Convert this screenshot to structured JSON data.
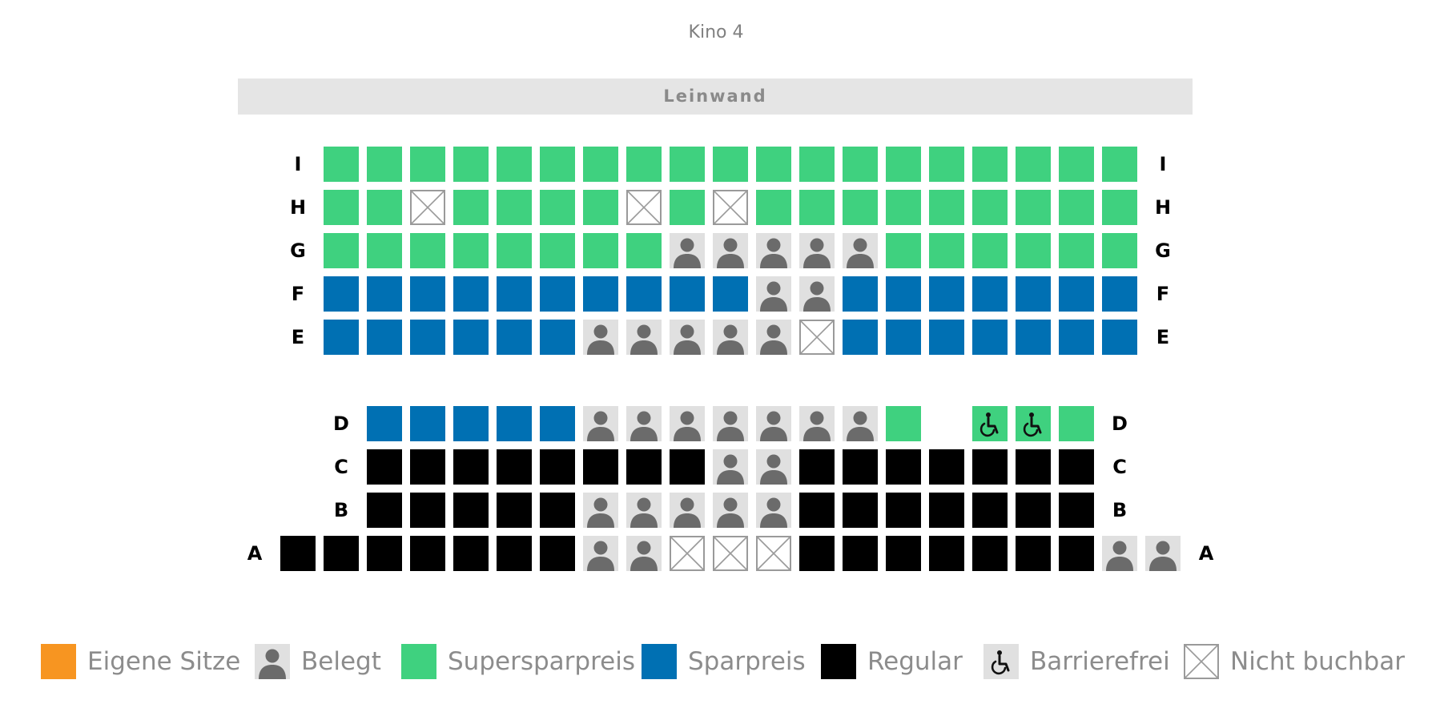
{
  "hall_title": "Kino 4",
  "screen_label": "Leinwand",
  "colors": {
    "eigene": "#f79521",
    "belegt_bg": "#e0e0e0",
    "belegt_icon": "#6b6b6b",
    "supersparpreis": "#3fd17f",
    "sparpreis": "#0070b3",
    "regular": "#000000",
    "nicht_buchbar_stroke": "#9a9a9a"
  },
  "seat_codes": {
    "S": "supersparpreis",
    "P": "sparpreis",
    "R": "regular",
    "O": "belegt",
    "X": "nicht-buchbar",
    "W": "barrierefrei",
    "E": "eigene",
    "_": "gap"
  },
  "rows": [
    {
      "label": "I",
      "seats": "___SSSSSSSSSSSSSSSSSSS__"
    },
    {
      "label": "H",
      "seats": "___SSXSSSSXSXSSSSSSSSS__"
    },
    {
      "label": "G",
      "seats": "___SSSSSSSSOOOOOSSSSSS__"
    },
    {
      "label": "F",
      "seats": "___PPPPPPPPPPOOPPPPPPP__"
    },
    {
      "label": "E",
      "seats": "___PPPPPPOOOOOXPPPPPPP__"
    },
    {
      "label": "D",
      "seats": "____PPPPPOOOOOOOS_WWS___"
    },
    {
      "label": "C",
      "seats": "____RRRRRRRROORRRRRRR___"
    },
    {
      "label": "B",
      "seats": "____RRRRROOOOORRRRRRR___"
    },
    {
      "label": "A",
      "seats": "__RRRRRRROOXXXRRRRRRROO_"
    }
  ],
  "legend": [
    {
      "key": "eigene",
      "label": "Eigene Sitze",
      "icon": "square-orange"
    },
    {
      "key": "belegt",
      "label": "Belegt",
      "icon": "person-icon"
    },
    {
      "key": "supersparpreis",
      "label": "Supersparpreis",
      "icon": "square-green"
    },
    {
      "key": "sparpreis",
      "label": "Sparpreis",
      "icon": "square-blue"
    },
    {
      "key": "regular",
      "label": "Regular",
      "icon": "square-black"
    },
    {
      "key": "barrierefrei",
      "label": "Barrierefrei",
      "icon": "wheelchair-icon"
    },
    {
      "key": "nicht-buchbar",
      "label": "Nicht buchbar",
      "icon": "cross-box-icon"
    }
  ]
}
